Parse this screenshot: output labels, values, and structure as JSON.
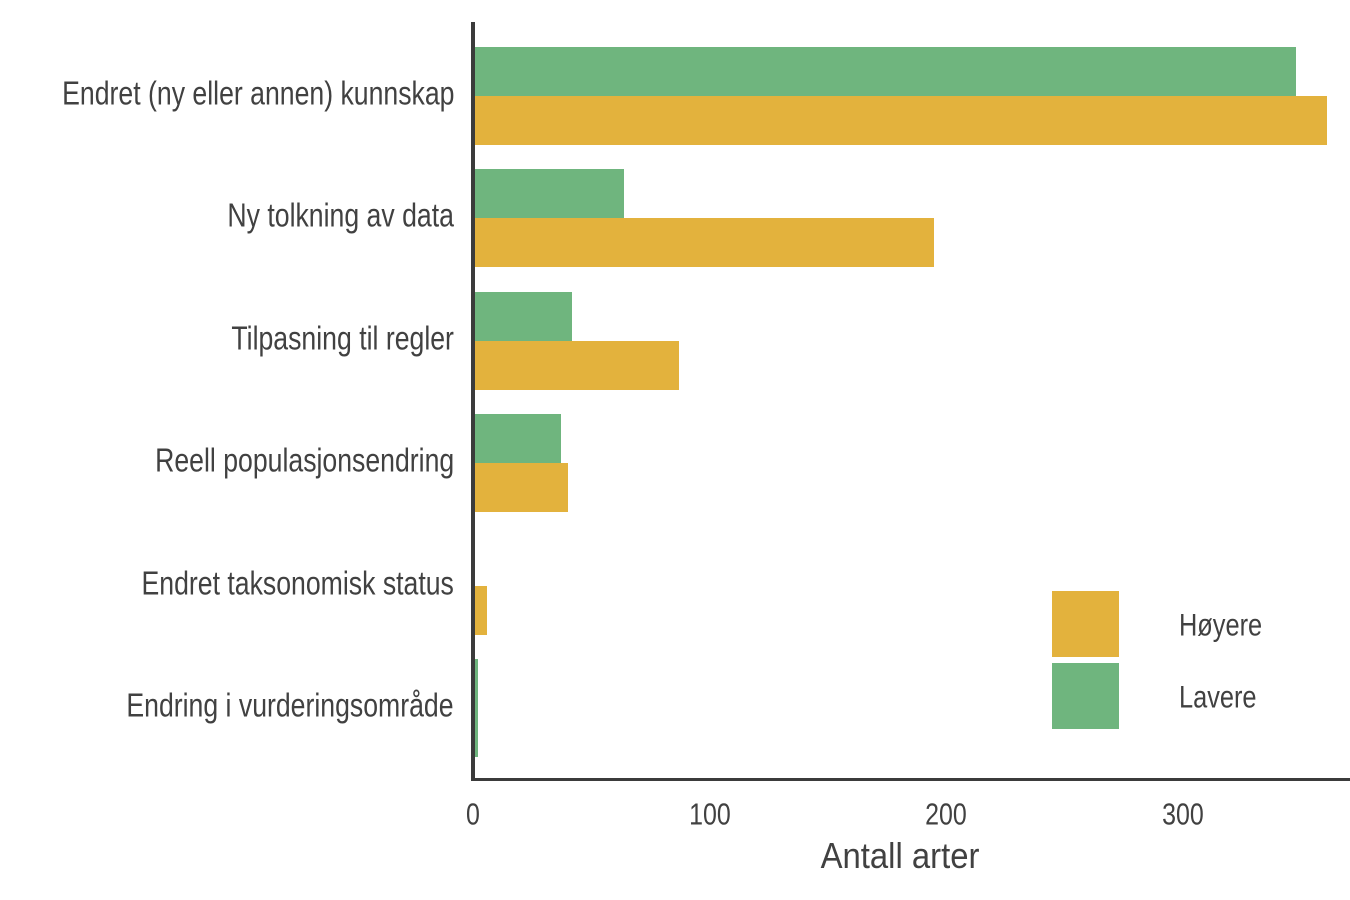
{
  "chart_data": {
    "type": "bar",
    "orientation": "horizontal",
    "title": "",
    "xlabel": "Antall arter",
    "ylabel": "",
    "categories": [
      "Endret (ny eller annen) kunnskap",
      "Ny tolkning av data",
      "Tilpasning til regler",
      "Reell populasjonsendring",
      "Endret taksonomisk status",
      "Endring i vurderingsområde"
    ],
    "series": [
      {
        "name": "Høyere",
        "color": "#E3B23D",
        "values": [
          361,
          195,
          87,
          40,
          6,
          null
        ]
      },
      {
        "name": "Lavere",
        "color": "#6FB57E",
        "values": [
          348,
          64,
          42,
          37,
          1,
          2
        ]
      }
    ],
    "x_ticks": [
      0,
      100,
      200,
      300
    ],
    "xlim": [
      0,
      371
    ],
    "grid": false,
    "legend_position": "right-middle"
  },
  "legend": {
    "items": [
      {
        "label": "Høyere",
        "color": "#E3B23D"
      },
      {
        "label": "Lavere",
        "color": "#6FB57E"
      }
    ]
  },
  "colors": {
    "axis": "#3B3B3B",
    "text": "#414141",
    "background": "#FFFFFF"
  }
}
